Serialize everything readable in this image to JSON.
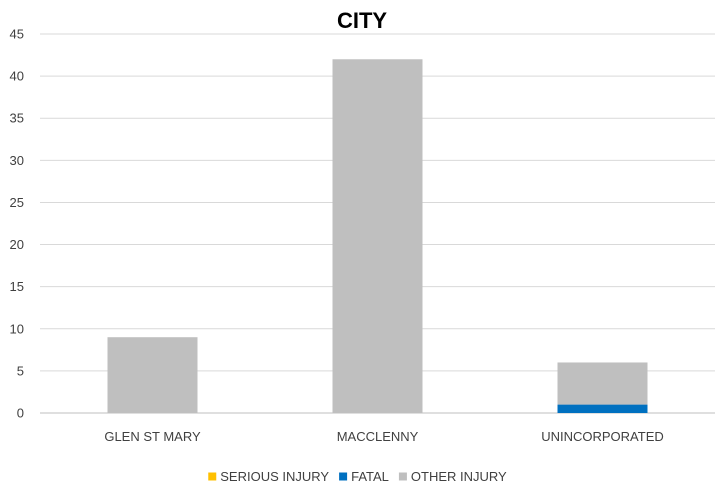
{
  "chart_data": {
    "type": "bar",
    "stacked": true,
    "title": "CITY",
    "xlabel": "",
    "ylabel": "",
    "ylim": [
      0,
      45
    ],
    "yticks": [
      0,
      5,
      10,
      15,
      20,
      25,
      30,
      35,
      40,
      45
    ],
    "grid": true,
    "legend_position": "bottom",
    "categories": [
      "GLEN ST MARY",
      "MACCLENNY",
      "UNINCORPORATED"
    ],
    "series": [
      {
        "name": "SERIOUS INJURY",
        "color": "#ffc000",
        "values": [
          0,
          0,
          0
        ]
      },
      {
        "name": "FATAL",
        "color": "#0070c0",
        "values": [
          0,
          0,
          1
        ]
      },
      {
        "name": "OTHER INJURY",
        "color": "#bfbfbf",
        "values": [
          9,
          42,
          5
        ]
      }
    ]
  }
}
